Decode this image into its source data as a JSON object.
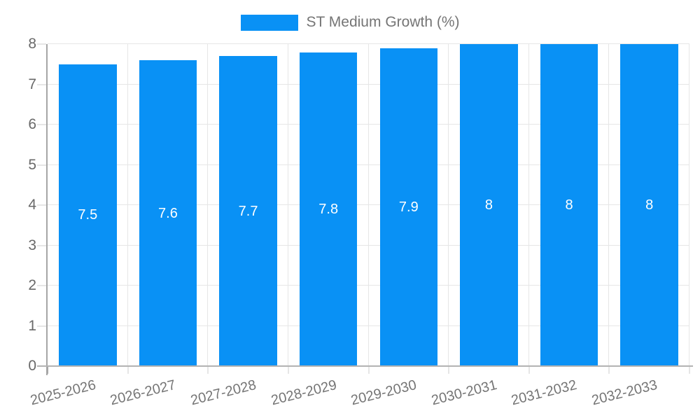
{
  "chart_data": {
    "type": "bar",
    "title": "",
    "legend": {
      "position": "top",
      "entries": [
        {
          "label": "ST Medium Growth (%)",
          "color": "#0991f5"
        }
      ]
    },
    "categories": [
      "2025-2026",
      "2026-2027",
      "2027-2028",
      "2028-2029",
      "2029-2030",
      "2030-2031",
      "2031-2032",
      "2032-2033"
    ],
    "series": [
      {
        "name": "ST Medium Growth (%)",
        "values": [
          7.5,
          7.6,
          7.7,
          7.8,
          7.9,
          8,
          8,
          8
        ]
      }
    ],
    "bar_value_labels": [
      "7.5",
      "7.6",
      "7.7",
      "7.8",
      "7.9",
      "8",
      "8",
      "8"
    ],
    "xlabel": "",
    "ylabel": "",
    "ylim": [
      0,
      8
    ],
    "yticks": [
      0,
      1,
      2,
      3,
      4,
      5,
      6,
      7,
      8
    ],
    "ytick_labels": [
      "0",
      "1",
      "2",
      "3",
      "4",
      "5",
      "6",
      "7",
      "8"
    ],
    "grid": true,
    "x_label_rotation_deg": -14,
    "bar_width_fraction": 0.72,
    "colors": {
      "bar": "#0991f5",
      "bar_label": "#ffffff",
      "gridline": "#e6e6e6",
      "axis_line": "#a6a6a6",
      "baseline": "#b3b3b3",
      "y_text": "#696969",
      "x_text": "#757575",
      "legend_text": "#757575",
      "background": "#ffffff"
    }
  }
}
